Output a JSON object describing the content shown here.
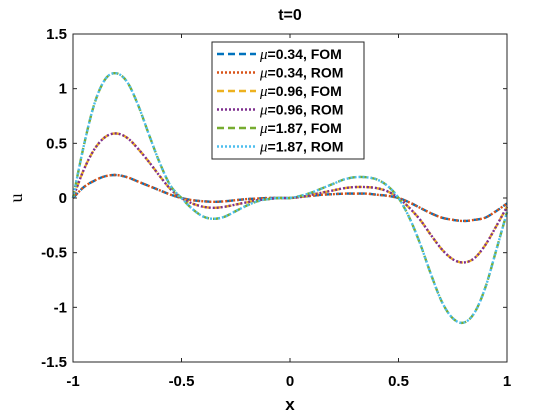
{
  "chart_data": {
    "type": "line",
    "title": "t=0",
    "xlabel": "x",
    "ylabel": "u",
    "xlim": [
      -1,
      1
    ],
    "ylim": [
      -1.5,
      1.5
    ],
    "xticks": [
      -1,
      -0.5,
      0,
      0.5,
      1
    ],
    "xtick_labels": [
      "-1",
      "-0.5",
      "0",
      "0.5",
      "1"
    ],
    "yticks": [
      1.5,
      1,
      0.5,
      0,
      -0.5,
      -1,
      -1.5
    ],
    "ytick_labels": [
      "1.5",
      "1",
      "0.5",
      "0",
      "-0.5",
      "-1",
      "-1.5"
    ],
    "grid": false,
    "legend_position": "top-center",
    "x": [
      -1,
      -0.95,
      -0.9,
      -0.85,
      -0.8,
      -0.75,
      -0.7,
      -0.65,
      -0.6,
      -0.55,
      -0.5,
      -0.45,
      -0.4,
      -0.35,
      -0.3,
      -0.25,
      -0.2,
      -0.15,
      -0.1,
      -0.05,
      0,
      0.05,
      0.1,
      0.15,
      0.2,
      0.25,
      0.3,
      0.35,
      0.4,
      0.45,
      0.5,
      0.55,
      0.6,
      0.65,
      0.7,
      0.75,
      0.8,
      0.85,
      0.9,
      0.95,
      1
    ],
    "series": [
      {
        "name": "=0.34, FOM",
        "color": "#0072BD",
        "dash": "7,4",
        "width": 2.4,
        "values": [
          0,
          0.1,
          0.16,
          0.2,
          0.21,
          0.19,
          0.15,
          0.11,
          0.07,
          0.03,
          0,
          -0.02,
          -0.03,
          -0.035,
          -0.03,
          -0.02,
          -0.01,
          -0.005,
          0,
          0,
          0,
          0.01,
          0.02,
          0.03,
          0.035,
          0.04,
          0.04,
          0.04,
          0.03,
          0.02,
          0,
          -0.04,
          -0.09,
          -0.14,
          -0.18,
          -0.2,
          -0.21,
          -0.2,
          -0.18,
          -0.12,
          -0.05
        ]
      },
      {
        "name": "=0.34, ROM",
        "color": "#D95319",
        "dash": "2,2",
        "width": 2.4,
        "values": [
          0,
          0.1,
          0.16,
          0.2,
          0.21,
          0.19,
          0.15,
          0.11,
          0.07,
          0.03,
          0,
          -0.02,
          -0.03,
          -0.035,
          -0.03,
          -0.02,
          -0.01,
          -0.005,
          0,
          0,
          0,
          0.01,
          0.02,
          0.03,
          0.035,
          0.04,
          0.04,
          0.04,
          0.03,
          0.02,
          0,
          -0.04,
          -0.09,
          -0.14,
          -0.18,
          -0.2,
          -0.21,
          -0.2,
          -0.18,
          -0.12,
          -0.05
        ]
      },
      {
        "name": "=0.96, FOM",
        "color": "#EDB120",
        "dash": "7,4",
        "width": 2.4,
        "values": [
          0,
          0.26,
          0.45,
          0.56,
          0.59,
          0.55,
          0.45,
          0.33,
          0.2,
          0.08,
          0,
          -0.05,
          -0.08,
          -0.09,
          -0.08,
          -0.06,
          -0.04,
          -0.02,
          -0.01,
          0,
          0,
          0.01,
          0.03,
          0.05,
          0.07,
          0.09,
          0.1,
          0.1,
          0.09,
          0.06,
          0,
          -0.09,
          -0.2,
          -0.34,
          -0.47,
          -0.56,
          -0.59,
          -0.55,
          -0.43,
          -0.26,
          -0.08
        ]
      },
      {
        "name": "=0.96, ROM",
        "color": "#7E2F8E",
        "dash": "2,2",
        "width": 2.4,
        "values": [
          0,
          0.26,
          0.45,
          0.56,
          0.59,
          0.55,
          0.45,
          0.33,
          0.2,
          0.08,
          0,
          -0.05,
          -0.08,
          -0.09,
          -0.08,
          -0.06,
          -0.04,
          -0.02,
          -0.01,
          0,
          0,
          0.01,
          0.03,
          0.05,
          0.07,
          0.09,
          0.1,
          0.1,
          0.09,
          0.06,
          0,
          -0.09,
          -0.2,
          -0.34,
          -0.47,
          -0.56,
          -0.59,
          -0.55,
          -0.43,
          -0.26,
          -0.08
        ]
      },
      {
        "name": "=1.87, FOM",
        "color": "#77AC30",
        "dash": "7,4",
        "width": 2.4,
        "values": [
          0,
          0.48,
          0.87,
          1.09,
          1.14,
          1.06,
          0.85,
          0.58,
          0.32,
          0.11,
          0,
          -0.1,
          -0.17,
          -0.19,
          -0.17,
          -0.12,
          -0.07,
          -0.03,
          -0.01,
          0,
          0,
          0.02,
          0.05,
          0.09,
          0.13,
          0.17,
          0.19,
          0.19,
          0.17,
          0.11,
          0,
          -0.18,
          -0.42,
          -0.7,
          -0.95,
          -1.1,
          -1.14,
          -1.05,
          -0.82,
          -0.48,
          -0.13
        ]
      },
      {
        "name": "=1.87, ROM",
        "color": "#4DBEEE",
        "dash": "2,2",
        "width": 2.4,
        "values": [
          0,
          0.48,
          0.87,
          1.09,
          1.14,
          1.06,
          0.85,
          0.58,
          0.32,
          0.11,
          0,
          -0.1,
          -0.17,
          -0.19,
          -0.17,
          -0.12,
          -0.07,
          -0.03,
          -0.01,
          0,
          0,
          0.02,
          0.05,
          0.09,
          0.13,
          0.17,
          0.19,
          0.19,
          0.17,
          0.11,
          0,
          -0.18,
          -0.42,
          -0.7,
          -0.95,
          -1.1,
          -1.14,
          -1.05,
          -0.82,
          -0.48,
          -0.13
        ]
      }
    ],
    "legend_prefix": "μ"
  }
}
